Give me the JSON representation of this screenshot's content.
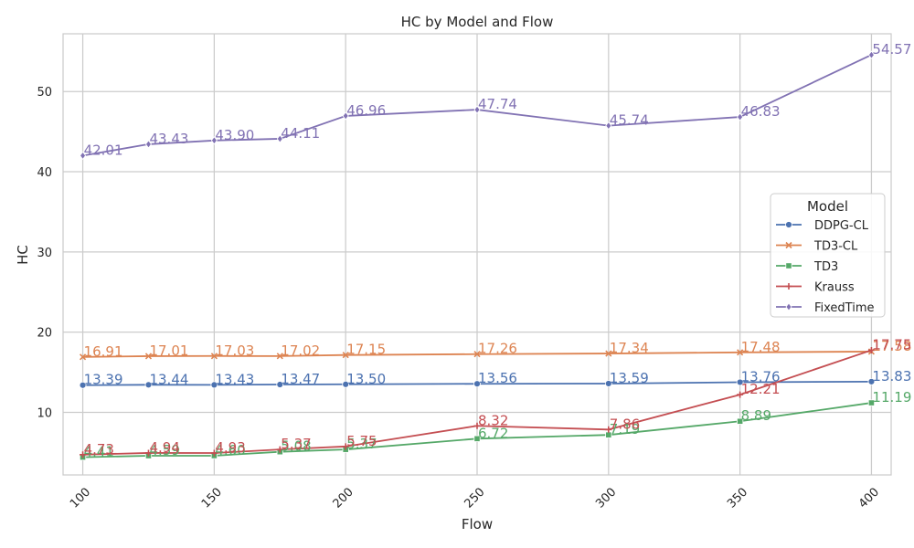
{
  "chart_data": {
    "type": "line",
    "title": "HC by Model and Flow",
    "xlabel": "Flow",
    "ylabel": "HC",
    "x": [
      100,
      125,
      150,
      175,
      200,
      250,
      300,
      350,
      400
    ],
    "xticks": [
      100,
      150,
      200,
      250,
      300,
      350,
      400
    ],
    "xlim": [
      92.5,
      407.5
    ],
    "yticks": [
      10,
      20,
      30,
      40,
      50
    ],
    "ylim": [
      2.2,
      57.2
    ],
    "grid": true,
    "legend": {
      "title": "Model",
      "placement": "right"
    },
    "series": [
      {
        "name": "DDPG-CL",
        "color": "#4c72b0",
        "marker": "circle",
        "values": [
          13.39,
          13.44,
          13.43,
          13.47,
          13.5,
          13.56,
          13.59,
          13.76,
          13.83
        ],
        "labels": [
          "13.39",
          "13.44",
          "13.43",
          "13.47",
          "13.50",
          "13.56",
          "13.59",
          "13.76",
          "13.83"
        ]
      },
      {
        "name": "TD3-CL",
        "color": "#dd8452",
        "marker": "x",
        "values": [
          16.91,
          17.01,
          17.03,
          17.02,
          17.15,
          17.26,
          17.34,
          17.48,
          17.58
        ],
        "labels": [
          "16.91",
          "17.01",
          "17.03",
          "17.02",
          "17.15",
          "17.26",
          "17.34",
          "17.48",
          "17.58"
        ]
      },
      {
        "name": "TD3",
        "color": "#55a868",
        "marker": "square",
        "values": [
          4.41,
          4.59,
          4.6,
          5.08,
          5.37,
          6.72,
          7.19,
          8.89,
          11.19
        ],
        "labels": [
          "4.41",
          "4.59",
          "4.60",
          "5.08",
          "5.37",
          "6.72",
          "7.19",
          "8.89",
          "11.19"
        ]
      },
      {
        "name": "Krauss",
        "color": "#c44e52",
        "marker": "plus",
        "values": [
          4.73,
          4.94,
          4.93,
          5.37,
          5.75,
          8.32,
          7.86,
          12.21,
          17.75
        ],
        "labels": [
          "4.73",
          "4.94",
          "4.93",
          "5.37",
          "5.75",
          "8.32",
          "7.86",
          "12.21",
          "17.75"
        ]
      },
      {
        "name": "FixedTime",
        "color": "#8172b3",
        "marker": "diamond",
        "values": [
          42.01,
          43.43,
          43.9,
          44.11,
          46.96,
          47.74,
          45.74,
          46.83,
          54.57
        ],
        "labels": [
          "42.01",
          "43.43",
          "43.90",
          "44.11",
          "46.96",
          "47.74",
          "45.74",
          "46.83",
          "54.57"
        ]
      }
    ]
  }
}
